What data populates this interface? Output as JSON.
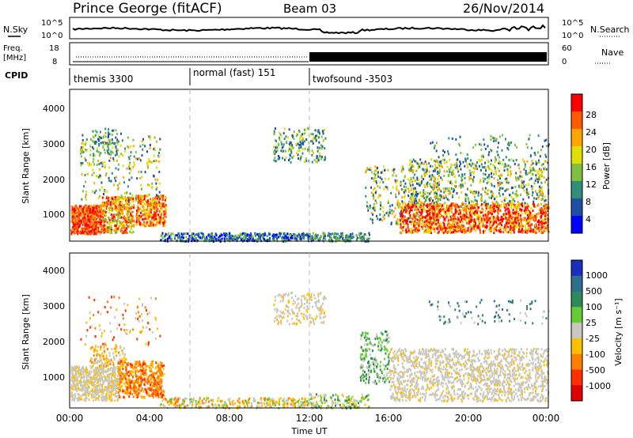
{
  "header": {
    "title": "Prince George (fitACF)",
    "beam": "Beam 03",
    "date": "26/Nov/2014"
  },
  "top_panels": {
    "nsky_label": "N.Sky",
    "nsky_ticks": [
      "10^5",
      "10^0"
    ],
    "nsearch_label": "N.Search",
    "nsearch_ticks": [
      "10^5",
      "10^0"
    ],
    "freq_label_line1": "Freq.",
    "freq_label_line2": "[MHz]",
    "freq_ticks": [
      "18",
      "8"
    ],
    "nave_label": "Nave",
    "nave_ticks": [
      "60",
      "0"
    ],
    "cpid_label": "CPID",
    "cpid_segments": [
      {
        "label": "themis 3300",
        "start": 0,
        "end": 6
      },
      {
        "label": "normal (fast) 151",
        "start": 6,
        "end": 12
      },
      {
        "label": "twofsound -3503",
        "start": 12,
        "end": 24
      }
    ]
  },
  "power_panel": {
    "ylabel": "Slant Range [km]",
    "yticks": [
      "4000",
      "3000",
      "2000",
      "1000"
    ],
    "colorbar_label": "Power [dB]",
    "colorbar_ticks": [
      "28",
      "24",
      "20",
      "16",
      "12",
      "8",
      "4"
    ],
    "colors": [
      "#0000ff",
      "#1e4fa3",
      "#2f8f7a",
      "#7fbf3f",
      "#e0e000",
      "#ffa500",
      "#ff5a00",
      "#ff0000"
    ]
  },
  "velocity_panel": {
    "ylabel": "Slant Range [km]",
    "yticks": [
      "4000",
      "3000",
      "2000",
      "1000"
    ],
    "colorbar_label": "Velocity [m s⁻¹]",
    "colorbar_ticks": [
      "1000",
      "500",
      "100",
      "25",
      "-25",
      "-100",
      "-500",
      "-1000"
    ],
    "colors": [
      "#1a2ebf",
      "#2e6e8e",
      "#2e8b57",
      "#66cc33",
      "#c8c8c0",
      "#ffc000",
      "#ff8000",
      "#ff3000",
      "#e00000"
    ]
  },
  "xaxis": {
    "label": "Time UT",
    "ticks": [
      "00:00",
      "04:00",
      "08:00",
      "12:00",
      "16:00",
      "20:00",
      "00:00"
    ]
  },
  "chart_data": {
    "type": "heatmap",
    "x_range_hours": [
      0,
      24
    ],
    "y_range_km": [
      180,
      4600
    ],
    "scatter_regions_power": [
      {
        "t": [
          0,
          4.8
        ],
        "r": [
          400,
          1400
        ],
        "level": "high"
      },
      {
        "t": [
          0.5,
          4.5
        ],
        "r": [
          1400,
          3400
        ],
        "level": "medium"
      },
      {
        "t": [
          10.2,
          12.8
        ],
        "r": [
          2600,
          3500
        ],
        "level": "medium"
      },
      {
        "t": [
          15.5,
          24
        ],
        "r": [
          400,
          1500
        ],
        "level": "high"
      },
      {
        "t": [
          15,
          24
        ],
        "r": [
          1200,
          2600
        ],
        "level": "medium"
      }
    ],
    "scatter_regions_velocity": [
      {
        "t": [
          0,
          2.5
        ],
        "r": [
          400,
          1400
        ],
        "velocity": "near-zero"
      },
      {
        "t": [
          2.5,
          4.5
        ],
        "r": [
          500,
          1500
        ],
        "velocity": "-200"
      },
      {
        "t": [
          14.5,
          16
        ],
        "r": [
          1000,
          2500
        ],
        "velocity": "100"
      },
      {
        "t": [
          16,
          24
        ],
        "r": [
          400,
          1900
        ],
        "velocity": "near-zero"
      }
    ]
  }
}
